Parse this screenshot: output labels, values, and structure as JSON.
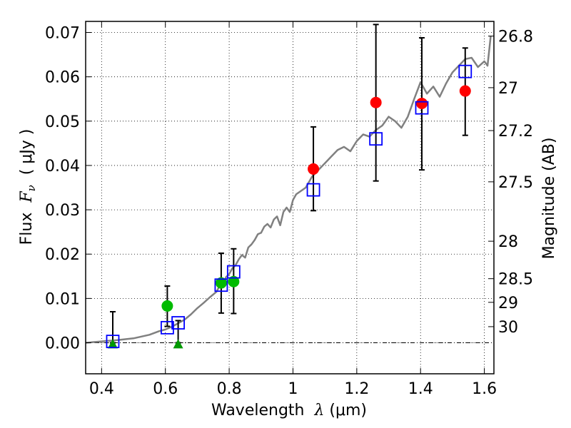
{
  "chart_data": {
    "type": "scatter",
    "xlabel": {
      "prefix": "Wavelength  ",
      "symbol": "λ",
      "suffix": " (μm)"
    },
    "ylabel": {
      "prefix": "Flux  ",
      "symbol": "F",
      "sub": "ν",
      "suffix": "  ( μJy )"
    },
    "y2label": "Magnitude (AB)",
    "xlim": [
      0.35,
      1.63
    ],
    "ylim": [
      -0.007,
      0.0725
    ],
    "grid": true,
    "x_ticks": [
      0.4,
      0.6,
      0.8,
      1.0,
      1.2,
      1.4,
      1.6
    ],
    "x_tick_labels": [
      "0.4",
      "0.6",
      "0.8",
      "1",
      "1.2",
      "1.4",
      "1.6"
    ],
    "y_ticks": [
      0.0,
      0.01,
      0.02,
      0.03,
      0.04,
      0.05,
      0.06,
      0.07
    ],
    "y_tick_labels": [
      "0.00",
      "0.01",
      "0.02",
      "0.03",
      "0.04",
      "0.05",
      "0.06",
      "0.07"
    ],
    "mag_ticks": [
      26.8,
      27,
      27.2,
      27.5,
      28,
      28.5,
      29,
      30
    ],
    "mag_tick_labels": [
      "26.8",
      "27",
      "27.2",
      "27.5",
      "28",
      "28.5",
      "29",
      "30"
    ],
    "series": [
      {
        "kind": "line",
        "color": "#808080",
        "x": [
          0.35,
          0.4,
          0.45,
          0.5,
          0.55,
          0.58,
          0.6,
          0.62,
          0.64,
          0.66,
          0.68,
          0.7,
          0.72,
          0.74,
          0.76,
          0.77,
          0.78,
          0.79,
          0.8,
          0.81,
          0.82,
          0.83,
          0.84,
          0.85,
          0.86,
          0.87,
          0.88,
          0.89,
          0.9,
          0.91,
          0.92,
          0.93,
          0.94,
          0.95,
          0.96,
          0.97,
          0.98,
          0.99,
          1.0,
          1.01,
          1.02,
          1.04,
          1.06,
          1.08,
          1.1,
          1.12,
          1.14,
          1.16,
          1.18,
          1.2,
          1.22,
          1.24,
          1.26,
          1.28,
          1.3,
          1.32,
          1.34,
          1.36,
          1.38,
          1.4,
          1.42,
          1.44,
          1.46,
          1.48,
          1.5,
          1.52,
          1.54,
          1.56,
          1.58,
          1.6,
          1.61,
          1.62
        ],
        "y": [
          0.0,
          0.0003,
          0.0006,
          0.001,
          0.0018,
          0.0026,
          0.003,
          0.0036,
          0.0044,
          0.0052,
          0.0064,
          0.0078,
          0.009,
          0.0103,
          0.0115,
          0.0128,
          0.0126,
          0.0148,
          0.0155,
          0.0168,
          0.0175,
          0.0188,
          0.0198,
          0.0192,
          0.0215,
          0.0222,
          0.0232,
          0.0245,
          0.0248,
          0.0262,
          0.0268,
          0.026,
          0.0278,
          0.0285,
          0.0265,
          0.0295,
          0.0305,
          0.0295,
          0.0322,
          0.0335,
          0.034,
          0.035,
          0.0375,
          0.039,
          0.0405,
          0.042,
          0.0435,
          0.0442,
          0.0432,
          0.0455,
          0.047,
          0.0465,
          0.048,
          0.049,
          0.051,
          0.05,
          0.0485,
          0.051,
          0.055,
          0.0588,
          0.0562,
          0.0578,
          0.0555,
          0.0585,
          0.061,
          0.0625,
          0.064,
          0.0643,
          0.0622,
          0.0635,
          0.0625,
          0.0692
        ]
      },
      {
        "kind": "points",
        "marker": "square-open",
        "color": "#0000ff",
        "x": [
          0.435,
          0.606,
          0.64,
          0.775,
          0.814,
          1.064,
          1.26,
          1.404,
          1.54
        ],
        "y": [
          0.0003,
          0.0034,
          0.0045,
          0.013,
          0.016,
          0.0345,
          0.046,
          0.053,
          0.0612
        ]
      },
      {
        "kind": "points",
        "marker": "circle",
        "color": "#00bb00",
        "x": [
          0.606,
          0.775,
          0.814
        ],
        "y": [
          0.0083,
          0.0135,
          0.0138
        ]
      },
      {
        "kind": "points",
        "marker": "triangle",
        "color": "#009900",
        "x": [
          0.435,
          0.64
        ],
        "y": [
          -0.0003,
          -0.0003
        ]
      },
      {
        "kind": "points",
        "marker": "circle",
        "color": "#ff0000",
        "x": [
          1.064,
          1.26,
          1.404,
          1.54
        ],
        "y": [
          0.0392,
          0.0542,
          0.054,
          0.0568
        ]
      }
    ],
    "error_bars": [
      {
        "x": 0.435,
        "low": 0.0,
        "high": 0.007
      },
      {
        "x": 0.606,
        "low": 0.0037,
        "high": 0.0128
      },
      {
        "x": 0.64,
        "low": 0.0,
        "high": 0.005
      },
      {
        "x": 0.775,
        "low": 0.0067,
        "high": 0.0202
      },
      {
        "x": 0.814,
        "low": 0.0066,
        "high": 0.0212
      },
      {
        "x": 1.064,
        "low": 0.0298,
        "high": 0.0487
      },
      {
        "x": 1.26,
        "low": 0.0365,
        "high": 0.0718
      },
      {
        "x": 1.404,
        "low": 0.039,
        "high": 0.0688
      },
      {
        "x": 1.54,
        "low": 0.0468,
        "high": 0.0665
      }
    ]
  }
}
